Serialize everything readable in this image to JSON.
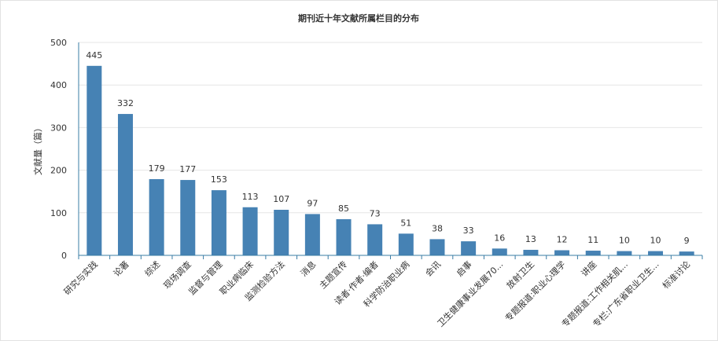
{
  "chart_data": {
    "type": "bar",
    "title": "期刊近十年文献所属栏目的分布",
    "xlabel": "",
    "ylabel": "文献量（篇）",
    "ylim": [
      0,
      500
    ],
    "yticks": [
      0,
      100,
      200,
      300,
      400,
      500
    ],
    "grid": true,
    "bar_color": "#4682b4",
    "categories": [
      "研究与实践",
      "论著",
      "综述",
      "现场调查",
      "监督与管理",
      "职业病临床",
      "监测检验方法",
      "消息",
      "主题宣传",
      "读者·作者·编者",
      "科学防治职业病",
      "会讯",
      "启事",
      "卫生健康事业发展70...",
      "放射卫生",
      "专题报道:职业心理学",
      "讲座",
      "专题报道:工作相关肌...",
      "专栏:广东省职业卫生...",
      "标准讨论"
    ],
    "values": [
      445,
      332,
      179,
      177,
      153,
      113,
      107,
      97,
      85,
      73,
      51,
      38,
      33,
      16,
      13,
      12,
      11,
      10,
      10,
      9
    ]
  }
}
